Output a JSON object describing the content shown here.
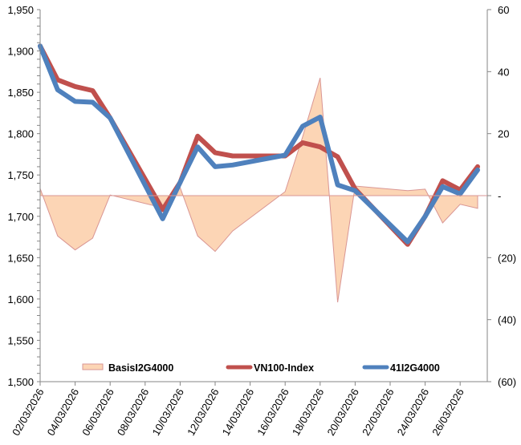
{
  "chart_data": {
    "type": "line",
    "title": "",
    "xlabel": "",
    "ylabel": "",
    "y2label": "",
    "grid": false,
    "legend_position": "bottom-inside",
    "x_axis": {
      "type": "date",
      "start": "02/03/2026",
      "end": "28/03/2026",
      "tick_labels": [
        "02/03/2026",
        "04/03/2026",
        "06/03/2026",
        "08/03/2026",
        "10/03/2026",
        "12/03/2026",
        "14/03/2026",
        "16/03/2026",
        "18/03/2026",
        "20/03/2026",
        "22/03/2026",
        "24/03/2026",
        "26/03/2026"
      ]
    },
    "y_axis_left": {
      "range": [
        1500,
        1950
      ],
      "tick_labels": [
        "1,500",
        "1,550",
        "1,600",
        "1,650",
        "1,700",
        "1,750",
        "1,800",
        "1,850",
        "1,900",
        "1,950"
      ],
      "ticks": [
        1500,
        1550,
        1600,
        1650,
        1700,
        1750,
        1800,
        1850,
        1900,
        1950
      ]
    },
    "y_axis_right": {
      "range": [
        -60,
        60
      ],
      "ticks": [
        -60,
        -40,
        -20,
        0,
        20,
        40,
        60
      ],
      "tick_labels": [
        "(60)",
        "(40)",
        "(20)",
        "-",
        "20",
        "40",
        "60"
      ]
    },
    "dates": [
      "02/03/2026",
      "03/03/2026",
      "04/03/2026",
      "05/03/2026",
      "06/03/2026",
      "09/03/2026",
      "10/03/2026",
      "11/03/2026",
      "12/03/2026",
      "13/03/2026",
      "16/03/2026",
      "17/03/2026",
      "18/03/2026",
      "19/03/2026",
      "20/03/2026",
      "23/03/2026",
      "24/03/2026",
      "25/03/2026",
      "26/03/2026",
      "27/03/2026"
    ],
    "series": [
      {
        "name": "BasisI2G4000",
        "type": "area",
        "axis": "right",
        "color": "#FCD5B5",
        "border_color": "#D99694",
        "values": [
          2.3,
          -13.0,
          -17.5,
          -13.7,
          0.2,
          -3.9,
          2.6,
          -13.0,
          -18.0,
          -11.4,
          1.3,
          19.0,
          38.0,
          -34.4,
          3.1,
          1.6,
          2.1,
          -8.8,
          -2.8,
          -4.1
        ]
      },
      {
        "name": "VN100-Index",
        "type": "line",
        "axis": "left",
        "color": "#C0504D",
        "values": [
          1906,
          1865,
          1857,
          1852,
          1819,
          1708,
          1741,
          1797,
          1777,
          1773,
          1773,
          1789,
          1784,
          1772,
          1733,
          1666,
          1700,
          1743,
          1732,
          1760
        ]
      },
      {
        "name": "41I2G4000",
        "type": "line",
        "axis": "left",
        "color": "#4F81BD",
        "values": [
          1906,
          1853,
          1839,
          1838,
          1819,
          1697,
          1741,
          1784,
          1760,
          1762,
          1774,
          1809,
          1820,
          1738,
          1731,
          1669,
          1700,
          1736,
          1727,
          1756
        ]
      }
    ]
  }
}
